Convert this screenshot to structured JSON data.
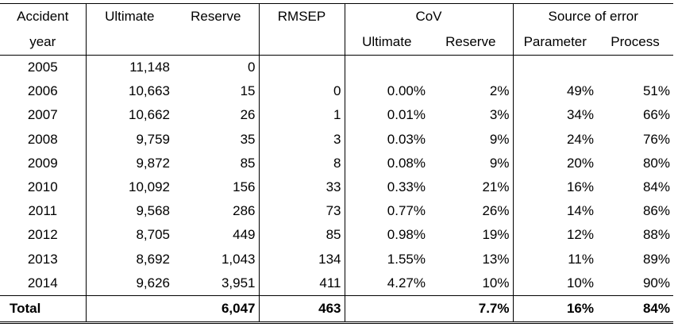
{
  "headers": {
    "accident": "Accident",
    "year": "year",
    "ultimate": "Ultimate",
    "reserve": "Reserve",
    "rmsep": "RMSEP",
    "cov": "CoV",
    "cov_ultimate": "Ultimate",
    "cov_reserve": "Reserve",
    "source": "Source of error",
    "parameter": "Parameter",
    "process": "Process"
  },
  "rows": [
    {
      "year": "2005",
      "ultimate": "11,148",
      "reserve": "0",
      "rmsep": "",
      "cov_ult": "",
      "cov_res": "",
      "parameter": "",
      "process": ""
    },
    {
      "year": "2006",
      "ultimate": "10,663",
      "reserve": "15",
      "rmsep": "0",
      "cov_ult": "0.00%",
      "cov_res": "2%",
      "parameter": "49%",
      "process": "51%"
    },
    {
      "year": "2007",
      "ultimate": "10,662",
      "reserve": "26",
      "rmsep": "1",
      "cov_ult": "0.01%",
      "cov_res": "3%",
      "parameter": "34%",
      "process": "66%"
    },
    {
      "year": "2008",
      "ultimate": "9,759",
      "reserve": "35",
      "rmsep": "3",
      "cov_ult": "0.03%",
      "cov_res": "9%",
      "parameter": "24%",
      "process": "76%"
    },
    {
      "year": "2009",
      "ultimate": "9,872",
      "reserve": "85",
      "rmsep": "8",
      "cov_ult": "0.08%",
      "cov_res": "9%",
      "parameter": "20%",
      "process": "80%"
    },
    {
      "year": "2010",
      "ultimate": "10,092",
      "reserve": "156",
      "rmsep": "33",
      "cov_ult": "0.33%",
      "cov_res": "21%",
      "parameter": "16%",
      "process": "84%"
    },
    {
      "year": "2011",
      "ultimate": "9,568",
      "reserve": "286",
      "rmsep": "73",
      "cov_ult": "0.77%",
      "cov_res": "26%",
      "parameter": "14%",
      "process": "86%"
    },
    {
      "year": "2012",
      "ultimate": "8,705",
      "reserve": "449",
      "rmsep": "85",
      "cov_ult": "0.98%",
      "cov_res": "19%",
      "parameter": "12%",
      "process": "88%"
    },
    {
      "year": "2013",
      "ultimate": "8,692",
      "reserve": "1,043",
      "rmsep": "134",
      "cov_ult": "1.55%",
      "cov_res": "13%",
      "parameter": "11%",
      "process": "89%"
    },
    {
      "year": "2014",
      "ultimate": "9,626",
      "reserve": "3,951",
      "rmsep": "411",
      "cov_ult": "4.27%",
      "cov_res": "10%",
      "parameter": "10%",
      "process": "90%"
    }
  ],
  "total": {
    "label": "Total",
    "ultimate": "",
    "reserve": "6,047",
    "rmsep": "463",
    "cov_ult": "",
    "cov_res": "7.7%",
    "parameter": "16%",
    "process": "84%"
  }
}
